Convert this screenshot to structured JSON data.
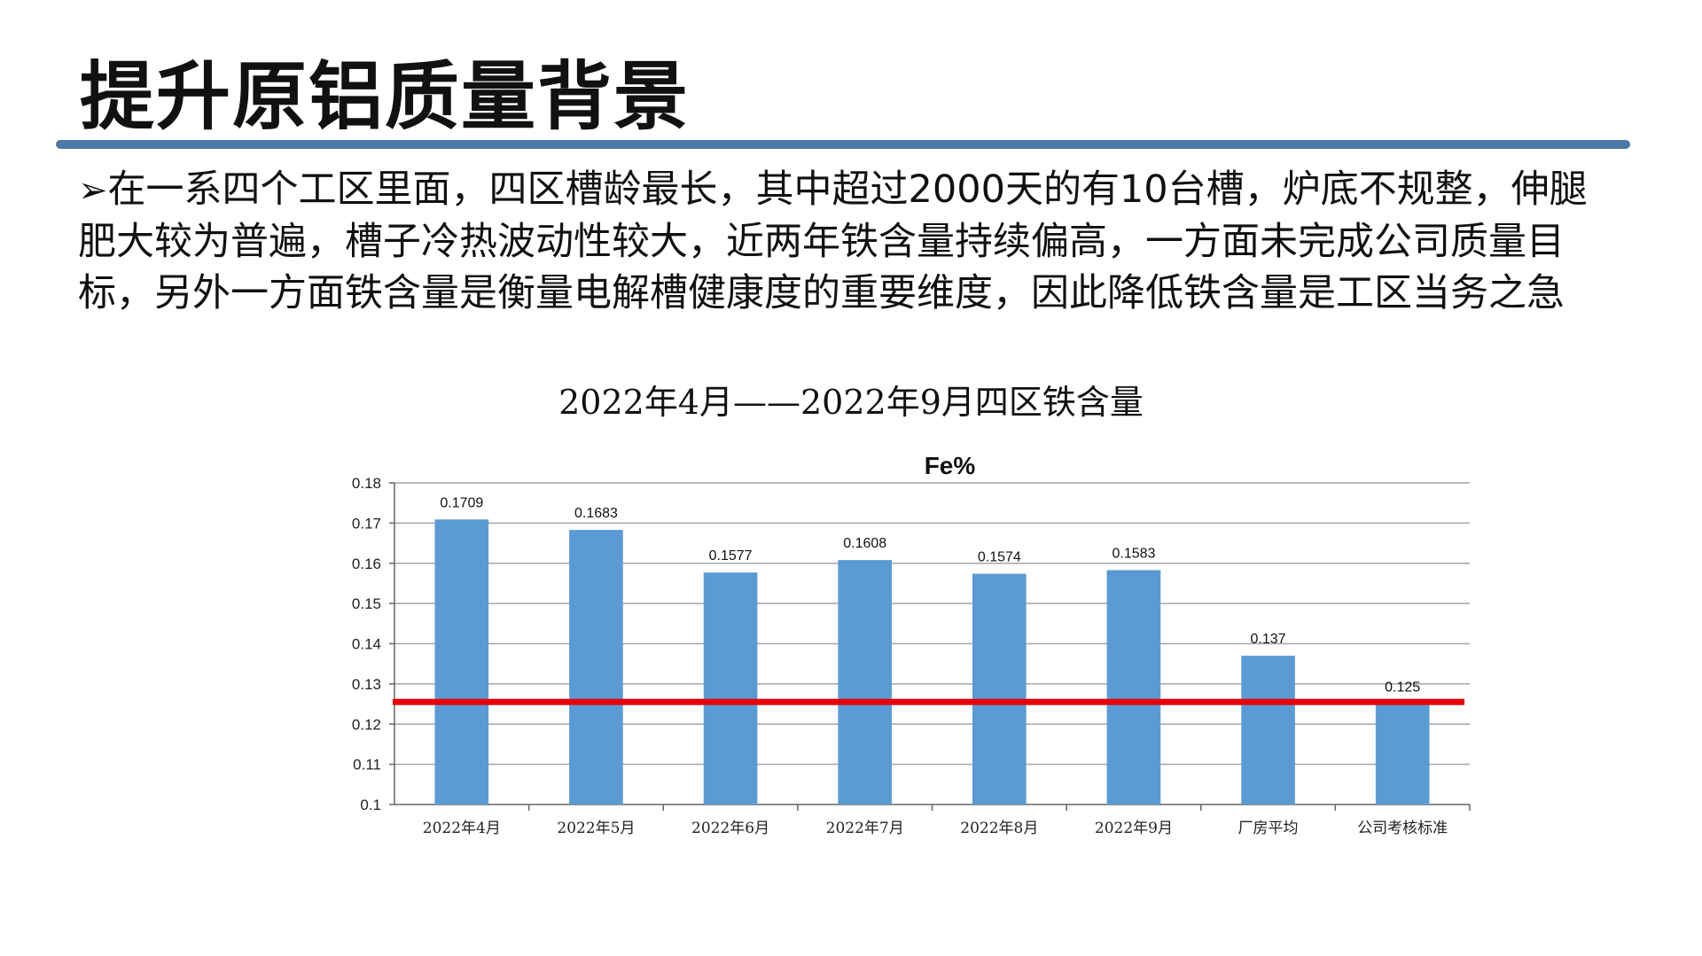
{
  "slide": {
    "title": "提升原铝质量背景",
    "bullet_marker": "➢",
    "bullet_text": "在一系四个工区里面，四区槽龄最长，其中超过2000天的有10台槽，炉底不规整，伸腿肥大较为普遍，槽子冷热波动性较大，近两年铁含量持续偏高，一方面未完成公司质量目标，另外一方面铁含量是衡量电解槽健康度的重要维度，因此降低铁含量是工区当务之急",
    "chart_caption": "2022年4月——2022年9月四区铁含量"
  },
  "colors": {
    "accent_rule": "#4e76a6",
    "bar": "#5b9bd5",
    "target_line": "#e8000b",
    "grid": "#a6a6a6"
  },
  "chart_data": {
    "type": "bar",
    "title": "Fe%",
    "categories": [
      "2022年4月",
      "2022年5月",
      "2022年6月",
      "2022年7月",
      "2022年8月",
      "2022年9月",
      "厂房平均",
      "公司考核标准"
    ],
    "values": [
      0.1709,
      0.1683,
      0.1577,
      0.1608,
      0.1574,
      0.1583,
      0.137,
      0.125
    ],
    "value_labels": [
      "0.1709",
      "0.1683",
      "0.1577",
      "0.1608",
      "0.1574",
      "0.1583",
      "0.137",
      "0.125"
    ],
    "ylim": [
      0.1,
      0.18
    ],
    "yticks": [
      0.1,
      0.11,
      0.12,
      0.13,
      0.14,
      0.15,
      0.16,
      0.17,
      0.18
    ],
    "ytick_labels": [
      "0.1",
      "0.11",
      "0.12",
      "0.13",
      "0.14",
      "0.15",
      "0.16",
      "0.17",
      "0.18"
    ],
    "target_line_value": 0.1255,
    "grid": true,
    "legend": "none",
    "xlabel": "",
    "ylabel": ""
  }
}
